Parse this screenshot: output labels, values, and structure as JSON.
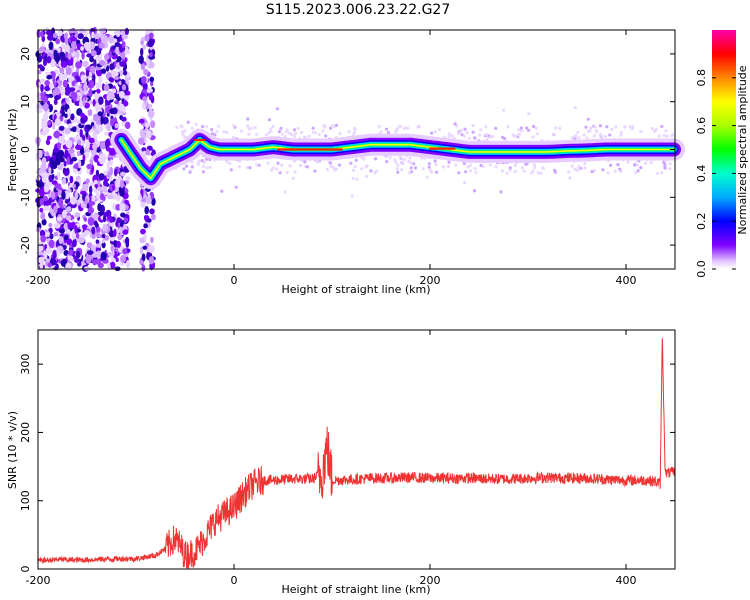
{
  "title": "S115.2023.006.23.22.G27",
  "chart_data": [
    {
      "type": "heatmap",
      "xlabel": "Height of straight line (km)",
      "ylabel": "Frequency (Hz)",
      "xlim": [
        -200,
        450
      ],
      "ylim": [
        -25,
        25
      ],
      "xticks": [
        -200,
        0,
        200,
        400
      ],
      "yticks": [
        -20,
        -10,
        0,
        10,
        20
      ],
      "grid": false,
      "colorbar": {
        "label": "Normalized spectral amplitude",
        "ticks": [
          0.0,
          0.2,
          0.4,
          0.6,
          0.8
        ],
        "range": [
          0,
          1
        ]
      },
      "ridge": {
        "x": [
          -115,
          -105,
          -95,
          -85,
          -75,
          -65,
          -55,
          -45,
          -35,
          -25,
          -15,
          0,
          20,
          40,
          60,
          80,
          100,
          120,
          140,
          160,
          180,
          200,
          220,
          240,
          260,
          280,
          300,
          320,
          340,
          360,
          380,
          400,
          420,
          440,
          450
        ],
        "y": [
          2,
          -1,
          -4,
          -6,
          -3,
          -2,
          -1,
          0,
          2,
          0.5,
          0,
          0,
          0,
          0.5,
          0,
          0,
          0,
          0.5,
          1,
          1,
          1,
          0.5,
          0,
          -0.5,
          -0.5,
          -0.5,
          -0.5,
          -0.5,
          -0.3,
          -0.2,
          0,
          0,
          0,
          0,
          0
        ]
      }
    },
    {
      "type": "line",
      "xlabel": "Height of straight line (km)",
      "ylabel": "SNR (10 * v/v)",
      "xlim": [
        -200,
        450
      ],
      "ylim": [
        0,
        350
      ],
      "xticks": [
        -200,
        0,
        200,
        400
      ],
      "yticks": [
        0,
        100,
        200,
        300
      ],
      "grid": false,
      "color": "#ee3333",
      "series": [
        {
          "x": [
            -200,
            -180,
            -160,
            -140,
            -120,
            -100,
            -80,
            -70,
            -60,
            -55,
            -50,
            -40,
            -30,
            -20,
            -10,
            0,
            10,
            20,
            30,
            40,
            60,
            80,
            90,
            95,
            100,
            120,
            140,
            160,
            180,
            200,
            220,
            240,
            260,
            280,
            300,
            320,
            340,
            360,
            380,
            400,
            420,
            430,
            435,
            437,
            440,
            450
          ],
          "y": [
            12,
            14,
            13,
            14,
            15,
            15,
            20,
            30,
            45,
            35,
            20,
            25,
            45,
            70,
            80,
            90,
            110,
            125,
            130,
            130,
            132,
            132,
            140,
            180,
            130,
            131,
            133,
            133,
            134,
            133,
            133,
            133,
            132,
            132,
            133,
            134,
            133,
            133,
            131,
            130,
            130,
            128,
            125,
            345,
            140,
            142
          ]
        }
      ]
    }
  ]
}
